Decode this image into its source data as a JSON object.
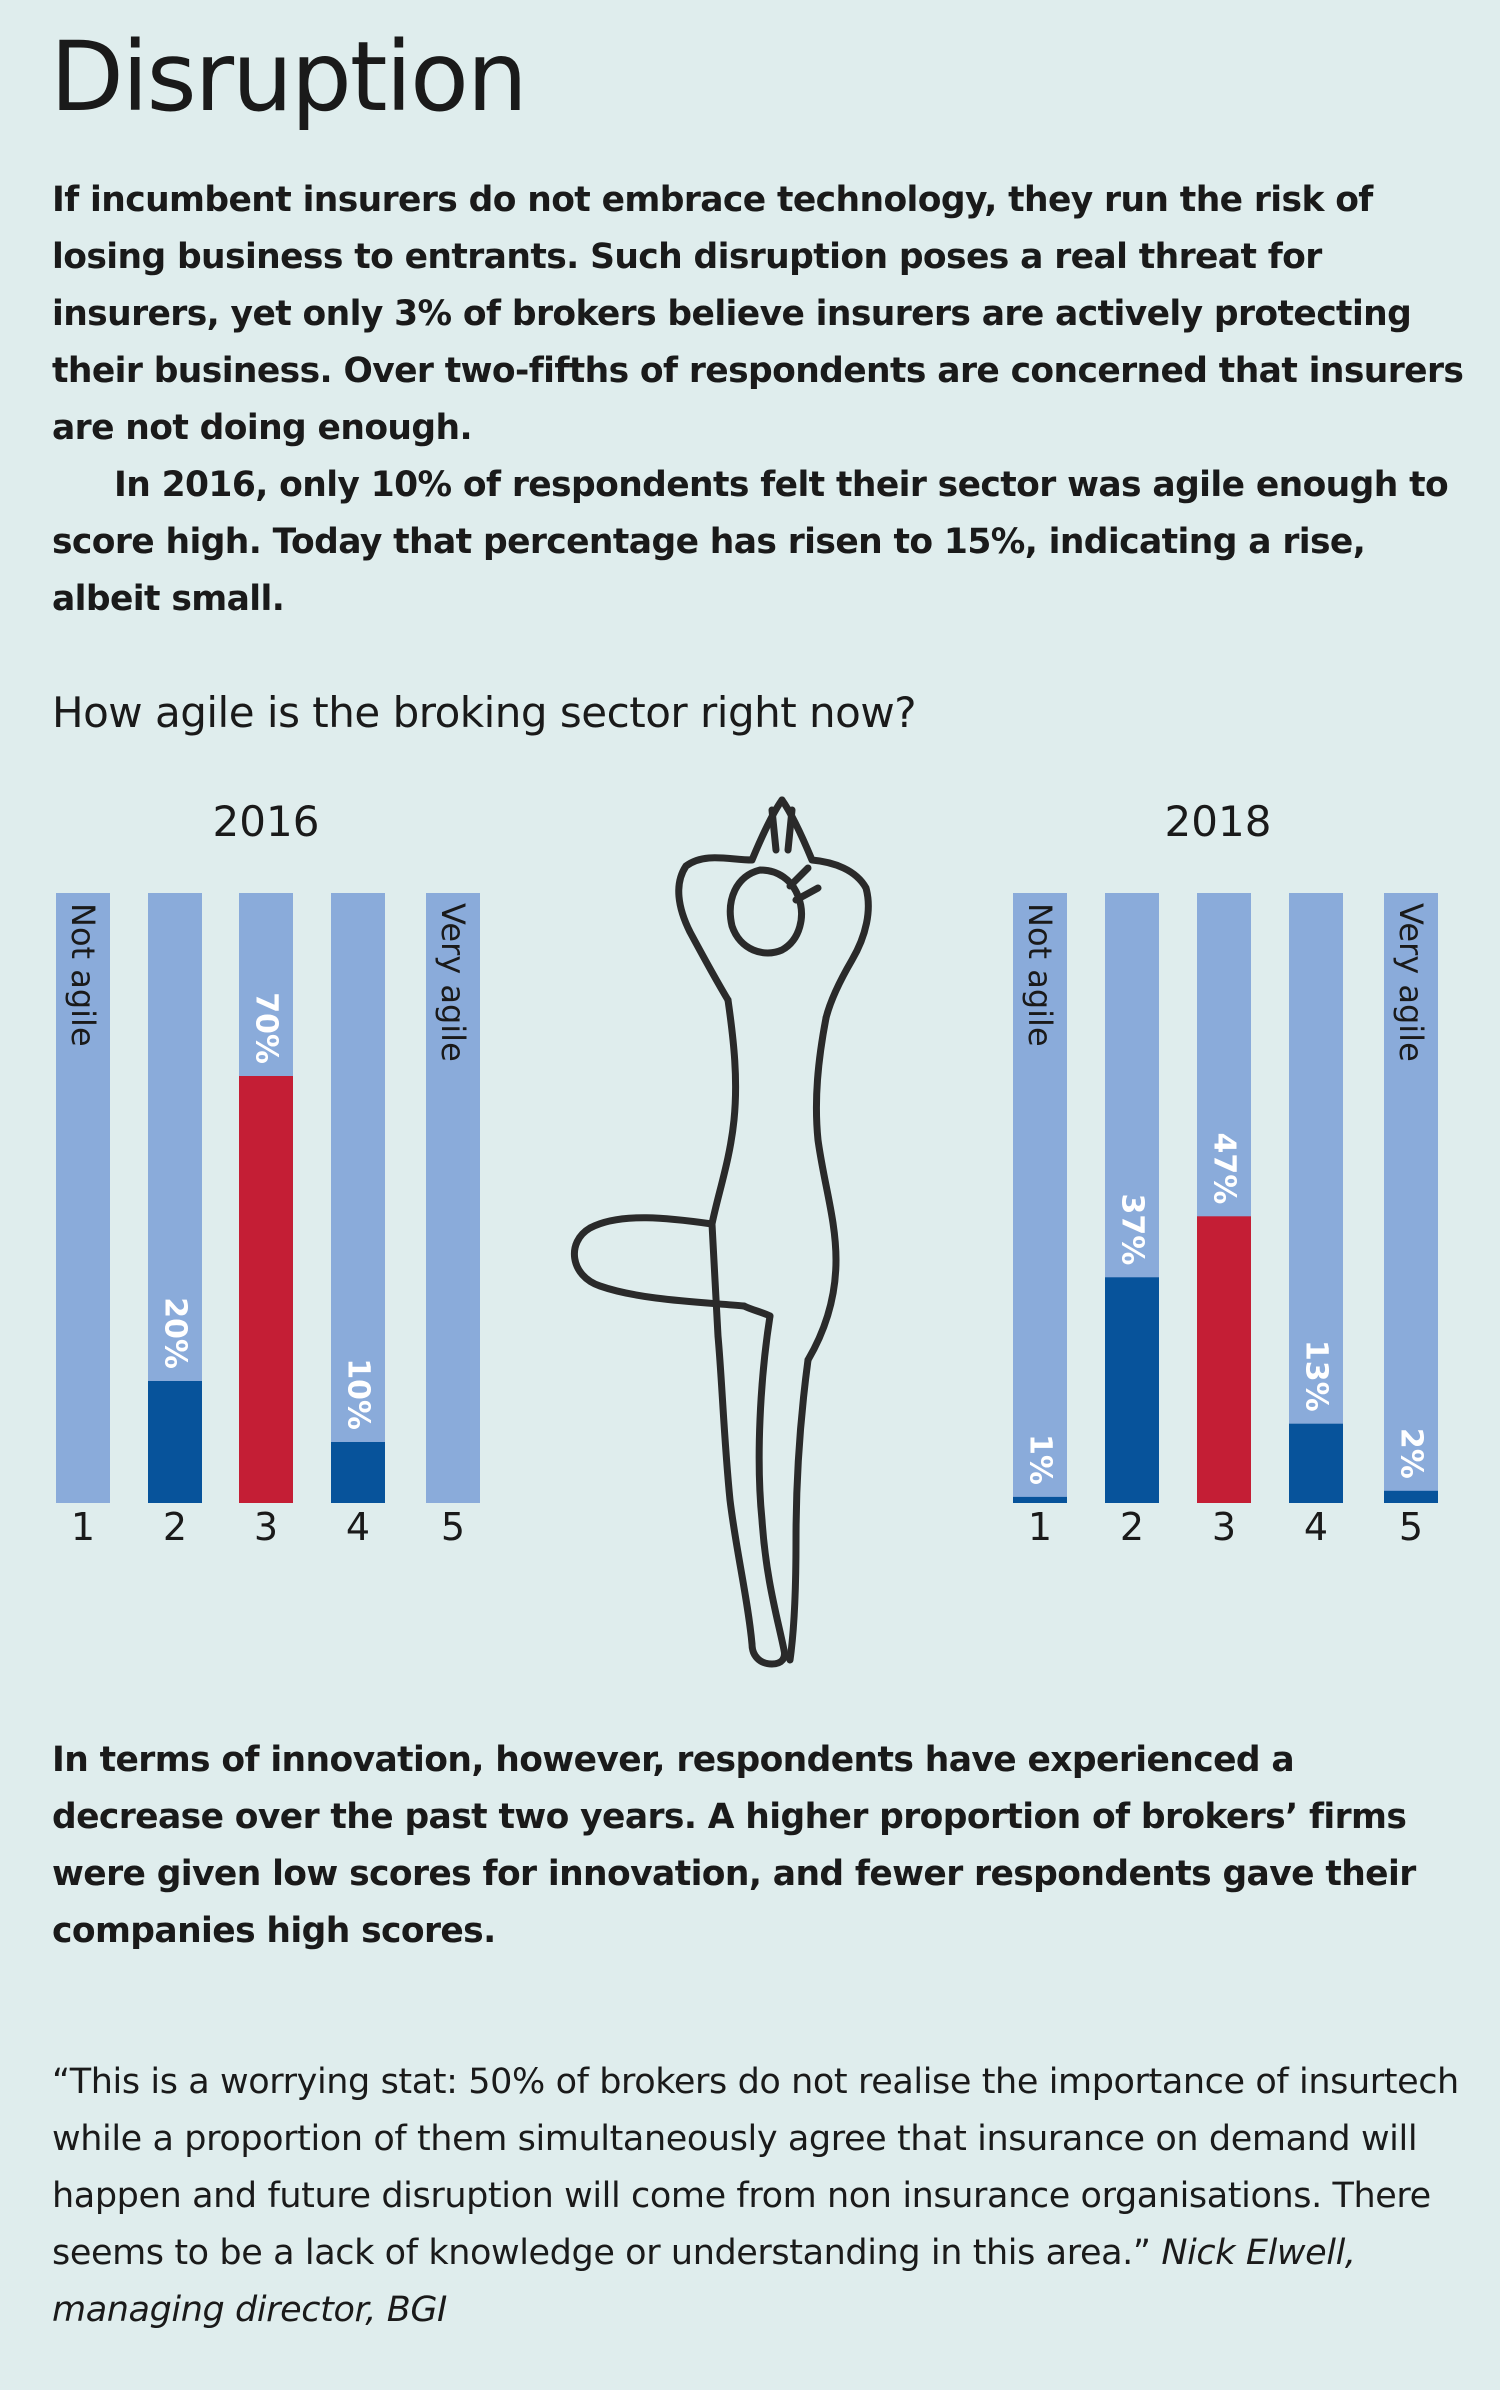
{
  "title": "Disruption",
  "intro": {
    "p1": "If incumbent insurers do not embrace technology, they run the risk of losing business to entrants. Such disruption poses a real threat for insurers, yet only 3% of brokers believe insurers are actively protecting their business. Over two-fifths of respondents are concerned that insurers are not doing enough.",
    "p2": "In 2016, only 10% of respondents felt their sector was agile enough to score high. Today that percentage has risen to 15%, indicating a rise, albeit small."
  },
  "question": "How agile is the broking sector right now?",
  "chart_data": [
    {
      "type": "bar",
      "title": "2016",
      "categories": [
        "1",
        "2",
        "3",
        "4",
        "5"
      ],
      "values": [
        0,
        20,
        70,
        10,
        0
      ],
      "value_labels": [
        "",
        "20%",
        "70%",
        "10%",
        ""
      ],
      "scale_labels": [
        "Not agile",
        "",
        "",
        "",
        "Very agile"
      ],
      "highlight_category": "3",
      "ylim": [
        0,
        100
      ]
    },
    {
      "type": "bar",
      "title": "2018",
      "categories": [
        "1",
        "2",
        "3",
        "4",
        "5"
      ],
      "values": [
        1,
        37,
        47,
        13,
        2
      ],
      "value_labels": [
        "1%",
        "37%",
        "47%",
        "13%",
        "2%"
      ],
      "scale_labels": [
        "Not agile",
        "",
        "",
        "",
        "Very agile"
      ],
      "highlight_category": "3",
      "ylim": [
        0,
        100
      ]
    }
  ],
  "colors": {
    "track": "#8aabda",
    "bar": "#07539b",
    "highlight": "#c41e35",
    "figure_stroke": "#2a2a2a"
  },
  "figure_icon": "yoga-tree-pose-figure",
  "outro": "In terms of innovation, however, respondents have experienced a decrease over the past two years. A higher proportion of brokers’ firms were given low scores for innovation, and fewer respondents gave their companies high scores.",
  "quote": {
    "text": "“This is a worrying stat: 50% of brokers do not realise the importance of insurtech while a proportion of them simultaneously agree that insurance on demand will happen and future disruption will come from non insurance organisations. There seems to be a lack of knowledge or understanding in this area.” ",
    "attribution": "Nick Elwell, managing director, BGI"
  }
}
